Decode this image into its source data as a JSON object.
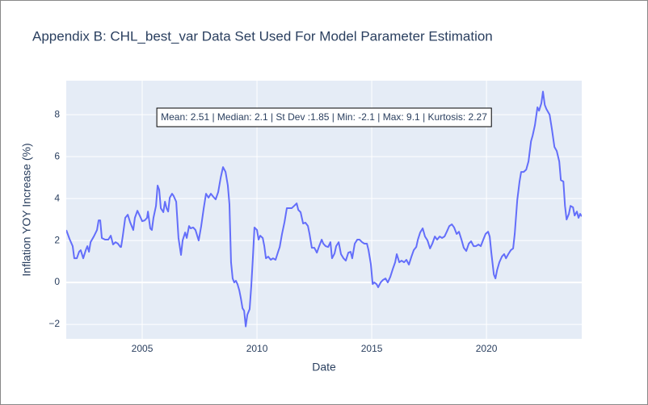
{
  "chart_data": {
    "type": "line",
    "title": "Appendix B: CHL_best_var Data Set Used For Model Parameter Estimation",
    "x_label": "Date",
    "y_label": "Inflation YOY Increase (%)",
    "annotation": "Mean: 2.51 | Median: 2.1 | St Dev :1.85 | Min: -2.1 | Max: 9.1 | Kurtosis: 2.27",
    "grid": true,
    "xlim": [
      2001.69,
      2024.15
    ],
    "ylim": [
      -2.69,
      9.62
    ],
    "xticks": [
      2005,
      2010,
      2015,
      2020
    ],
    "yticks": [
      {
        "value": -2,
        "label": "−2"
      },
      0,
      2,
      4,
      6,
      8
    ],
    "x": [
      2001.69,
      2001.83,
      2001.97,
      2002.04,
      2002.15,
      2002.25,
      2002.32,
      2002.43,
      2002.54,
      2002.61,
      2002.68,
      2002.75,
      2002.89,
      2003.03,
      2003.1,
      2003.17,
      2003.24,
      2003.38,
      2003.52,
      2003.63,
      2003.73,
      2003.84,
      2003.94,
      2004.05,
      2004.08,
      2004.15,
      2004.26,
      2004.37,
      2004.47,
      2004.61,
      2004.68,
      2004.79,
      2004.89,
      2005.0,
      2005.11,
      2005.21,
      2005.25,
      2005.35,
      2005.42,
      2005.49,
      2005.6,
      2005.67,
      2005.74,
      2005.81,
      2005.92,
      2005.99,
      2006.06,
      2006.13,
      2006.2,
      2006.3,
      2006.37,
      2006.48,
      2006.58,
      2006.69,
      2006.76,
      2006.87,
      2006.94,
      2007.04,
      2007.11,
      2007.22,
      2007.32,
      2007.46,
      2007.57,
      2007.68,
      2007.78,
      2007.89,
      2007.99,
      2008.1,
      2008.2,
      2008.31,
      2008.42,
      2008.52,
      2008.63,
      2008.73,
      2008.8,
      2008.87,
      2008.94,
      2009.01,
      2009.08,
      2009.15,
      2009.23,
      2009.3,
      2009.37,
      2009.44,
      2009.51,
      2009.58,
      2009.68,
      2009.75,
      2009.82,
      2009.89,
      2010.0,
      2010.07,
      2010.14,
      2010.25,
      2010.32,
      2010.39,
      2010.49,
      2010.6,
      2010.7,
      2010.81,
      2010.92,
      2010.99,
      2011.09,
      2011.2,
      2011.3,
      2011.41,
      2011.51,
      2011.62,
      2011.73,
      2011.8,
      2011.9,
      2012.01,
      2012.11,
      2012.22,
      2012.29,
      2012.39,
      2012.5,
      2012.61,
      2012.71,
      2012.82,
      2012.89,
      2012.99,
      2013.1,
      2013.2,
      2013.27,
      2013.38,
      2013.45,
      2013.56,
      2013.66,
      2013.77,
      2013.87,
      2013.98,
      2014.08,
      2014.15,
      2014.26,
      2014.37,
      2014.47,
      2014.58,
      2014.68,
      2014.79,
      2014.86,
      2014.96,
      2015.04,
      2015.11,
      2015.21,
      2015.28,
      2015.39,
      2015.49,
      2015.6,
      2015.7,
      2015.81,
      2015.92,
      2016.02,
      2016.09,
      2016.2,
      2016.3,
      2016.41,
      2016.51,
      2016.62,
      2016.73,
      2016.83,
      2016.94,
      2017.01,
      2017.11,
      2017.22,
      2017.32,
      2017.43,
      2017.54,
      2017.64,
      2017.75,
      2017.85,
      2017.96,
      2018.06,
      2018.17,
      2018.27,
      2018.38,
      2018.49,
      2018.59,
      2018.7,
      2018.8,
      2018.91,
      2019.01,
      2019.12,
      2019.23,
      2019.33,
      2019.44,
      2019.54,
      2019.65,
      2019.75,
      2019.86,
      2019.96,
      2020.07,
      2020.14,
      2020.21,
      2020.32,
      2020.39,
      2020.46,
      2020.56,
      2020.67,
      2020.77,
      2020.85,
      2020.95,
      2021.06,
      2021.16,
      2021.23,
      2021.34,
      2021.44,
      2021.51,
      2021.62,
      2021.73,
      2021.83,
      2021.94,
      2022.01,
      2022.11,
      2022.22,
      2022.29,
      2022.39,
      2022.46,
      2022.54,
      2022.61,
      2022.75,
      2022.85,
      2022.96,
      2023.06,
      2023.17,
      2023.24,
      2023.35,
      2023.42,
      2023.49,
      2023.59,
      2023.66,
      2023.77,
      2023.84,
      2023.94,
      2024.01,
      2024.08,
      2024.15
    ],
    "series": [
      {
        "name": "CHL_best_var",
        "color": "#636efa",
        "values": [
          2.5,
          2.08,
          1.73,
          1.15,
          1.15,
          1.46,
          1.54,
          1.15,
          1.54,
          1.73,
          1.46,
          1.92,
          2.19,
          2.5,
          2.96,
          2.96,
          2.12,
          2.04,
          2.04,
          2.23,
          1.81,
          1.92,
          1.85,
          1.69,
          1.69,
          2.19,
          3.08,
          3.23,
          2.88,
          2.5,
          3.08,
          3.42,
          3.19,
          2.92,
          2.96,
          3.08,
          3.38,
          2.58,
          2.5,
          3.08,
          3.65,
          4.62,
          4.42,
          3.54,
          3.35,
          3.85,
          3.54,
          3.38,
          4.04,
          4.23,
          4.12,
          3.85,
          2.12,
          1.31,
          2.0,
          2.38,
          2.12,
          2.69,
          2.58,
          2.62,
          2.5,
          2.0,
          2.69,
          3.54,
          4.23,
          4.04,
          4.23,
          4.08,
          3.96,
          4.31,
          5.0,
          5.5,
          5.27,
          4.62,
          3.73,
          0.96,
          0.19,
          0,
          0.08,
          -0.08,
          -0.38,
          -0.77,
          -1.23,
          -1.35,
          -2.1,
          -1.54,
          -1.27,
          -0.19,
          1.15,
          2.62,
          2.5,
          2.04,
          2.23,
          2.12,
          1.73,
          1.15,
          1.23,
          1.08,
          1.15,
          1.08,
          1.46,
          1.69,
          2.31,
          2.88,
          3.54,
          3.54,
          3.54,
          3.65,
          3.77,
          3.46,
          3.35,
          2.81,
          2.85,
          2.69,
          2.31,
          1.65,
          1.65,
          1.42,
          1.73,
          2.04,
          1.85,
          1.73,
          1.69,
          1.92,
          1.15,
          1.38,
          1.73,
          1.92,
          1.35,
          1.15,
          1.04,
          1.42,
          1.46,
          1.15,
          1.85,
          2.04,
          2.04,
          1.92,
          1.85,
          1.85,
          1.54,
          0.88,
          -0.08,
          0,
          -0.08,
          -0.23,
          0,
          0.12,
          0.19,
          0,
          0.27,
          0.65,
          0.96,
          1.35,
          0.96,
          1.04,
          0.96,
          1.08,
          0.85,
          1.23,
          1.54,
          1.69,
          2.04,
          2.38,
          2.58,
          2.19,
          2.0,
          1.62,
          1.85,
          2.19,
          2.04,
          2.19,
          2.12,
          2.19,
          2.42,
          2.69,
          2.77,
          2.62,
          2.31,
          2.42,
          2.04,
          1.65,
          1.5,
          1.85,
          1.96,
          1.73,
          1.73,
          1.81,
          1.73,
          2.04,
          2.31,
          2.42,
          2.19,
          1.42,
          0.38,
          0.19,
          0.58,
          0.96,
          1.23,
          1.35,
          1.15,
          1.35,
          1.54,
          1.62,
          2.31,
          3.92,
          4.81,
          5.27,
          5.27,
          5.38,
          5.77,
          6.73,
          7.0,
          7.5,
          8.35,
          8.19,
          8.54,
          9.1,
          8.46,
          8.27,
          8.0,
          7.31,
          6.46,
          6.27,
          5.77,
          4.88,
          4.81,
          3.65,
          3.0,
          3.27,
          3.65,
          3.58,
          3.19,
          3.38,
          3.08,
          3.27,
          3.15
        ]
      }
    ]
  }
}
